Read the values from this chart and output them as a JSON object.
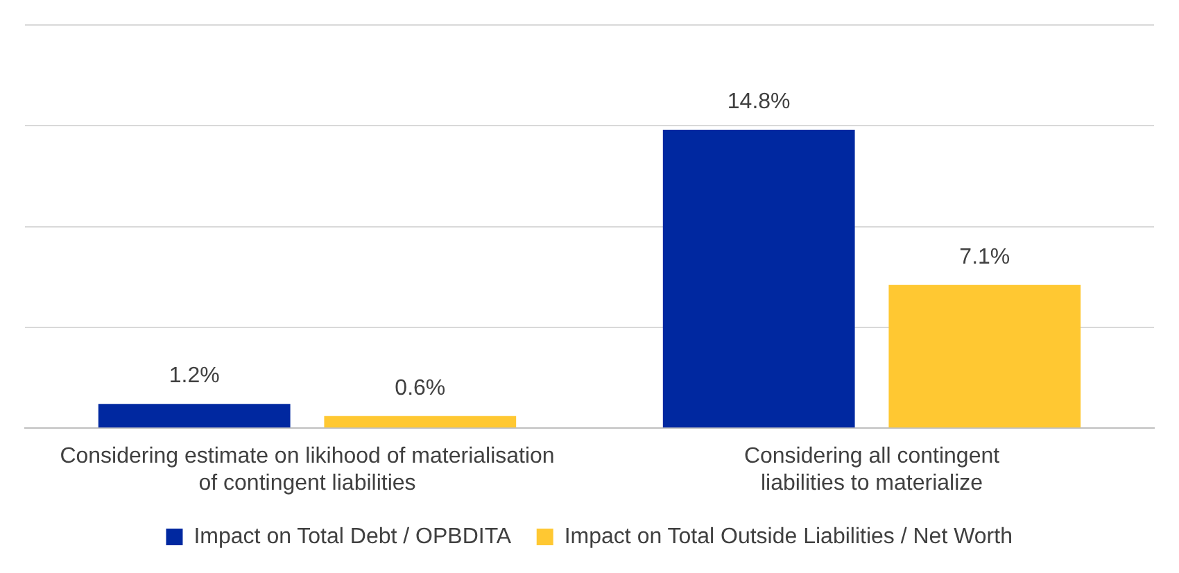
{
  "chart_data": {
    "type": "bar",
    "categories": [
      "Considering estimate on likihood of materialisation of contingent liabilities",
      "Considering all contingent liabilities to materialize"
    ],
    "series": [
      {
        "name": "Impact on Total Debt / OPBDITA",
        "color": "#0028a0",
        "values": [
          1.2,
          14.8
        ],
        "value_labels": [
          "1.2%",
          "14.8%"
        ]
      },
      {
        "name": "Impact on Total Outside Liabilities / Net Worth",
        "color": "#ffc832",
        "values": [
          0.6,
          7.1
        ],
        "value_labels": [
          "0.6%",
          "7.1%"
        ]
      }
    ],
    "ylim": [
      0,
      20
    ],
    "yticks": [
      {
        "value": 0,
        "label": null
      },
      {
        "value": 5,
        "label": null
      },
      {
        "value": 10,
        "label": null
      },
      {
        "value": 15,
        "label": null
      },
      {
        "value": 20,
        "label": null
      }
    ],
    "grid": "y",
    "tick_labels": "x",
    "legend": "bottom"
  }
}
